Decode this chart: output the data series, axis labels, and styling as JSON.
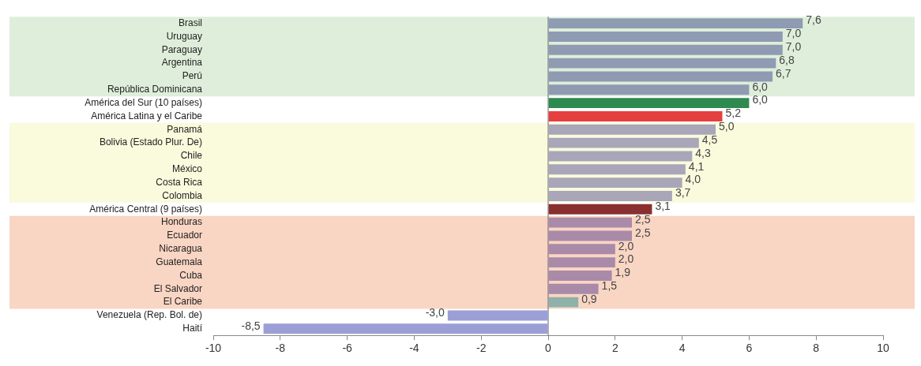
{
  "chart_data": {
    "type": "bar",
    "orientation": "horizontal",
    "categories": [
      "Brasil",
      "Uruguay",
      "Paraguay",
      "Argentina",
      "Perú",
      "República Dominicana",
      "América del Sur (10 países)",
      "América Latina y el Caribe",
      "Panamá",
      "Bolivia (Estado Plur. De)",
      "Chile",
      "México",
      "Costa Rica",
      "Colombia",
      "América Central (9 países)",
      "Honduras",
      "Ecuador",
      "Nicaragua",
      "Guatemala",
      "Cuba",
      "El Salvador",
      "El Caribe",
      "Venezuela (Rep. Bol. de)",
      "Haití"
    ],
    "values": [
      7.6,
      7.0,
      7.0,
      6.8,
      6.7,
      6.0,
      6.0,
      5.2,
      5.0,
      4.5,
      4.3,
      4.1,
      4.0,
      3.7,
      3.1,
      2.5,
      2.5,
      2.0,
      2.0,
      1.9,
      1.5,
      0.9,
      -3.0,
      -8.5
    ],
    "value_labels": [
      "7,6",
      "7,0",
      "7,0",
      "6,8",
      "6,7",
      "6,0",
      "6,0",
      "5,2",
      "5,0",
      "4,5",
      "4,3",
      "4,1",
      "4,0",
      "3,7",
      "3,1",
      "2,5",
      "2,5",
      "2,0",
      "2,0",
      "1,9",
      "1,5",
      "0,9",
      "-3,0",
      "-8,5"
    ],
    "colors": [
      "#8e9bb2",
      "#8e9bb2",
      "#8e9bb2",
      "#8e9bb2",
      "#8e9bb2",
      "#8e9bb2",
      "#2e8a4e",
      "#e5403f",
      "#a8a6b8",
      "#a8a6b8",
      "#a8a6b8",
      "#a8a6b8",
      "#a8a6b8",
      "#a8a6b8",
      "#8a2f30",
      "#a98aa9",
      "#a98aa9",
      "#a98aa9",
      "#a98aa9",
      "#a98aa9",
      "#a98aa9",
      "#8fb1a9",
      "#9b9fd6",
      "#9b9fd6"
    ],
    "xlim": [
      -10,
      10
    ],
    "xticks": [
      -10,
      -8,
      -6,
      -4,
      -2,
      0,
      2,
      4,
      6,
      8,
      10
    ],
    "bands": [
      {
        "axis": "y",
        "from": "Brasil",
        "to": "República Dominicana",
        "color": "#dfeedb"
      },
      {
        "axis": "y",
        "from": "Panamá",
        "to": "Colombia",
        "color": "#fafadd"
      },
      {
        "axis": "y",
        "from": "Honduras",
        "to": "El Caribe",
        "color": "#f9d5c3"
      }
    ],
    "ref_lines": [
      {
        "axis": "x",
        "value": 0,
        "color": "#666666"
      }
    ],
    "grid": false,
    "legend": false
  }
}
